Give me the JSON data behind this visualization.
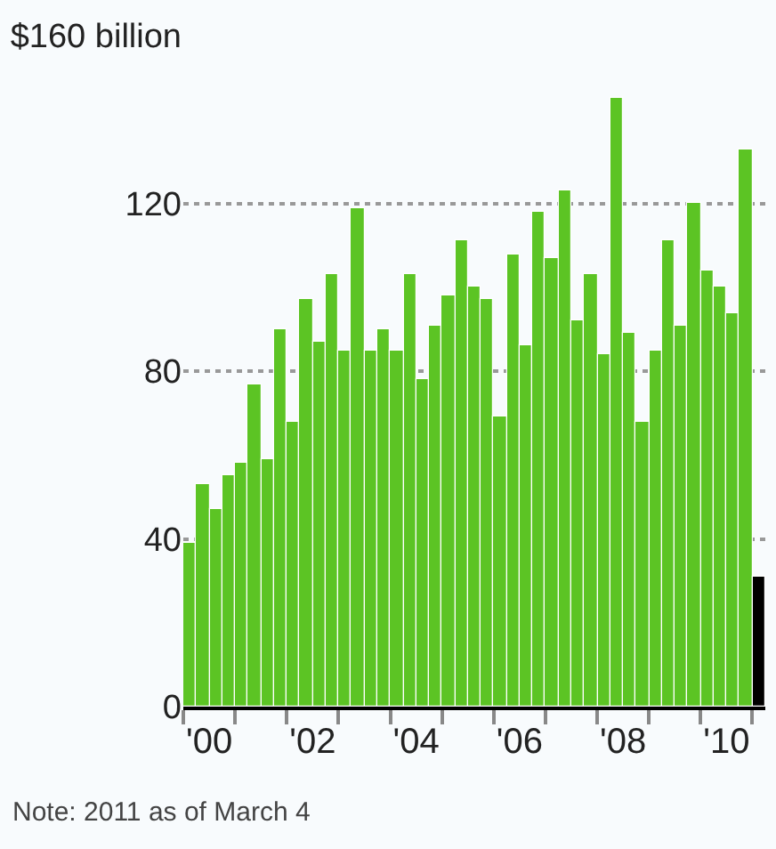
{
  "chart_data": {
    "type": "bar",
    "categories": [
      null,
      "'00",
      null,
      null,
      null,
      null,
      null,
      null,
      null,
      "'02",
      null,
      null,
      null,
      null,
      null,
      null,
      null,
      "'04",
      null,
      null,
      null,
      null,
      null,
      null,
      null,
      "'06",
      null,
      null,
      null,
      null,
      null,
      null,
      null,
      "'08",
      null,
      null,
      null,
      null,
      null,
      null,
      null,
      "'10",
      null,
      null,
      null
    ],
    "values": [
      39,
      53,
      47,
      55,
      58,
      77,
      59,
      90,
      68,
      97,
      87,
      103,
      85,
      119,
      85,
      90,
      85,
      103,
      78,
      91,
      98,
      111,
      100,
      97,
      69,
      108,
      86,
      118,
      107,
      123,
      92,
      103,
      84,
      145,
      89,
      68,
      85,
      111,
      91,
      120,
      104,
      100,
      94,
      133,
      31
    ],
    "colors": [
      "#5cc424",
      "#5cc424",
      "#5cc424",
      "#5cc424",
      "#5cc424",
      "#5cc424",
      "#5cc424",
      "#5cc424",
      "#5cc424",
      "#5cc424",
      "#5cc424",
      "#5cc424",
      "#5cc424",
      "#5cc424",
      "#5cc424",
      "#5cc424",
      "#5cc424",
      "#5cc424",
      "#5cc424",
      "#5cc424",
      "#5cc424",
      "#5cc424",
      "#5cc424",
      "#5cc424",
      "#5cc424",
      "#5cc424",
      "#5cc424",
      "#5cc424",
      "#5cc424",
      "#5cc424",
      "#5cc424",
      "#5cc424",
      "#5cc424",
      "#5cc424",
      "#5cc424",
      "#5cc424",
      "#5cc424",
      "#5cc424",
      "#5cc424",
      "#5cc424",
      "#5cc424",
      "#5cc424",
      "#5cc424",
      "#5cc424",
      "#000000"
    ],
    "ylim": [
      0,
      160
    ],
    "yticks": [
      0,
      40,
      80,
      120,
      {
        "value": 160,
        "label": "$160 billion"
      }
    ],
    "grid": "y",
    "annotations": [
      "Note: 2011 as of March 4"
    ]
  }
}
